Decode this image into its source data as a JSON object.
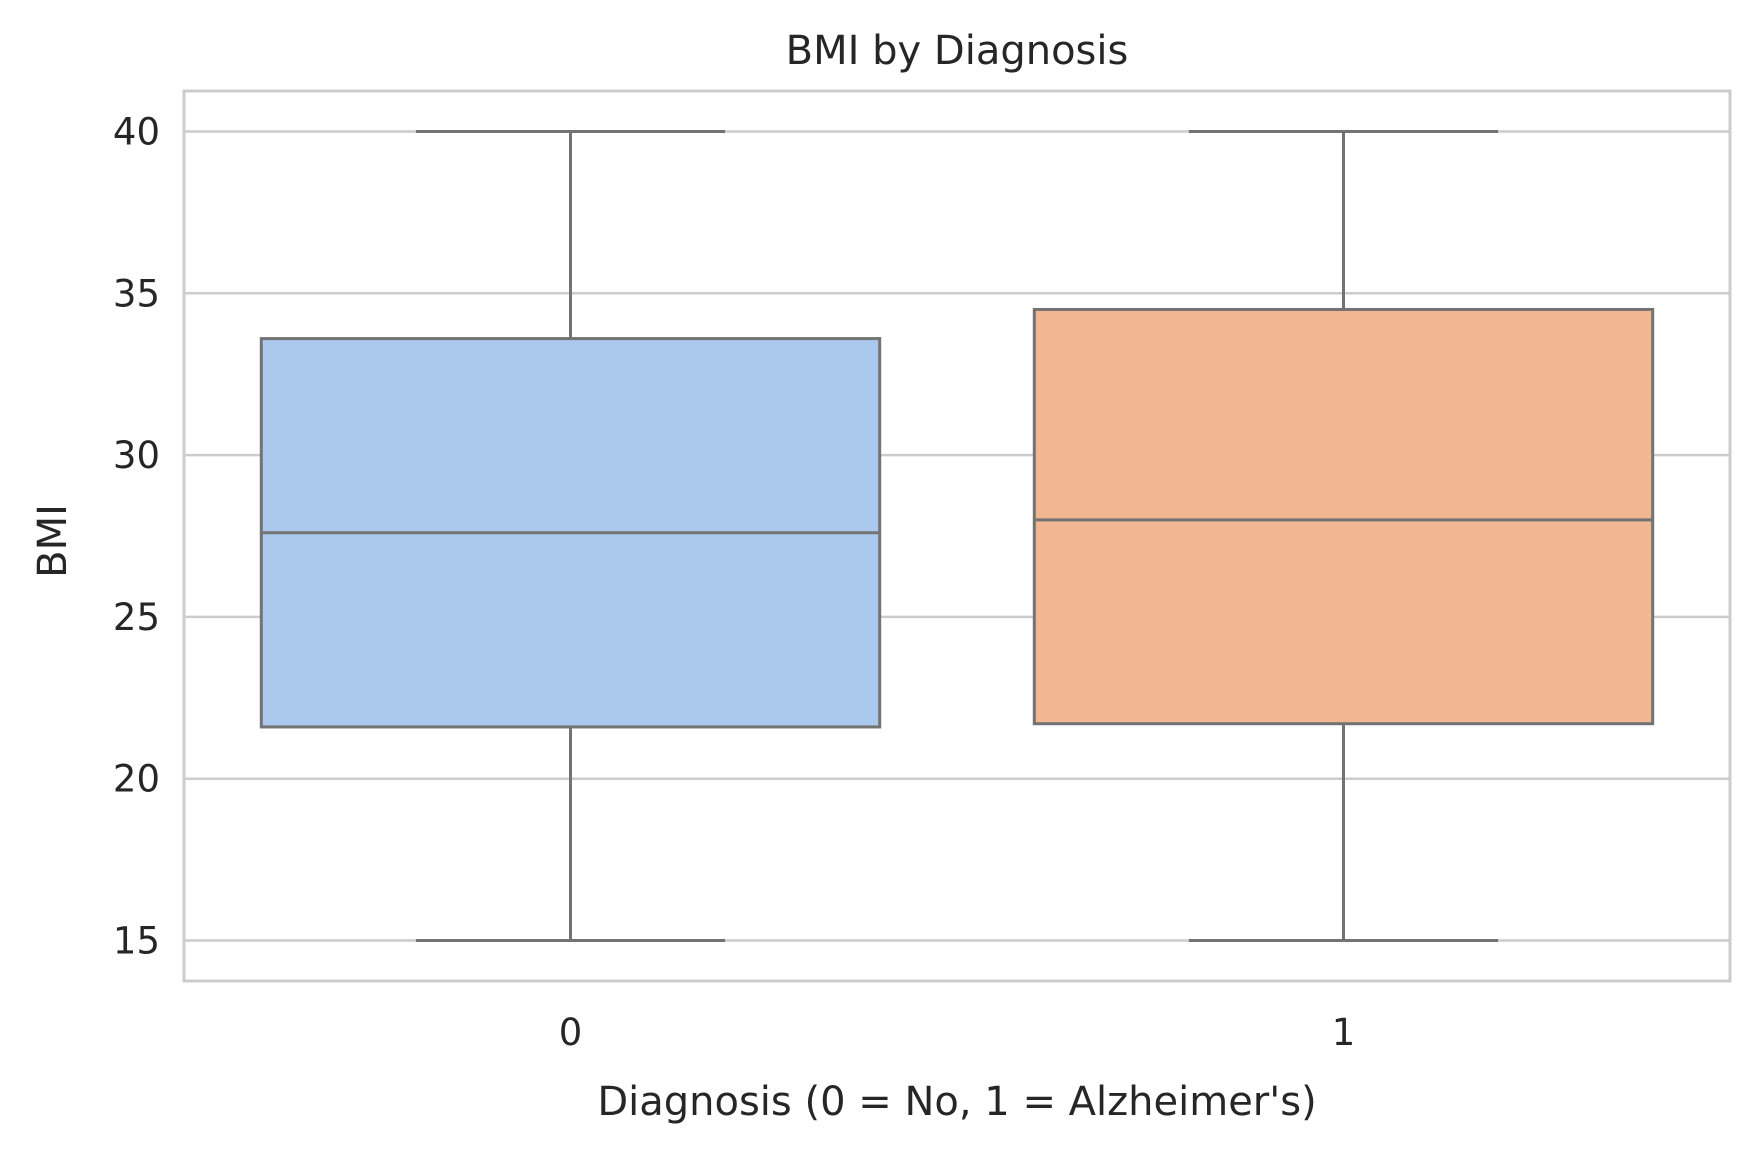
{
  "chart_data": {
    "type": "box",
    "title": "BMI by Diagnosis",
    "xlabel": "Diagnosis (0 = No, 1 = Alzheimer's)",
    "ylabel": "BMI",
    "categories": [
      "0",
      "1"
    ],
    "yticks": [
      15,
      20,
      25,
      30,
      35,
      40
    ],
    "ylim": [
      13.75,
      41.25
    ],
    "grid": true,
    "colors": {
      "box": [
        "#abc9ec",
        "#f1b793"
      ],
      "line": "#737373",
      "grid": "#cccccc",
      "frame": "#cccccc"
    },
    "series": [
      {
        "category": "0",
        "min": 15.0,
        "q1": 21.6,
        "median": 27.6,
        "q3": 33.6,
        "max": 40.0
      },
      {
        "category": "1",
        "min": 15.0,
        "q1": 21.7,
        "median": 28.0,
        "q3": 34.5,
        "max": 40.0
      }
    ]
  }
}
